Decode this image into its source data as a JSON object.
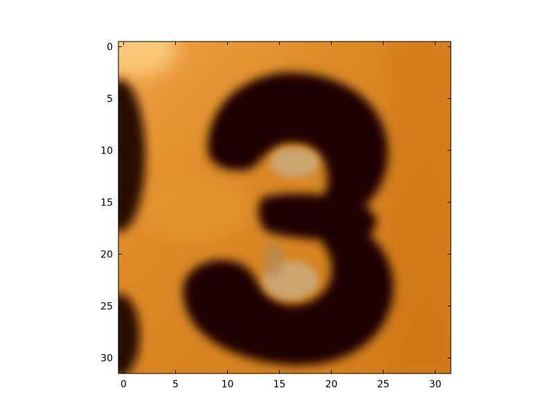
{
  "image": {
    "description_depicted": "digit-3",
    "colors": {
      "background_orange": "#d9801c",
      "background_light": "#f7c06a",
      "digit_dark": "#1a0500",
      "highlight_tan": "#c8a872",
      "frame": "#000000"
    }
  },
  "axes": {
    "x_ticks": [
      "0",
      "5",
      "10",
      "15",
      "20",
      "25",
      "30"
    ],
    "y_ticks": [
      "0",
      "5",
      "10",
      "15",
      "20",
      "25",
      "30"
    ],
    "x_range": [
      -0.5,
      31.5
    ],
    "y_range": [
      -0.5,
      31.5
    ]
  }
}
